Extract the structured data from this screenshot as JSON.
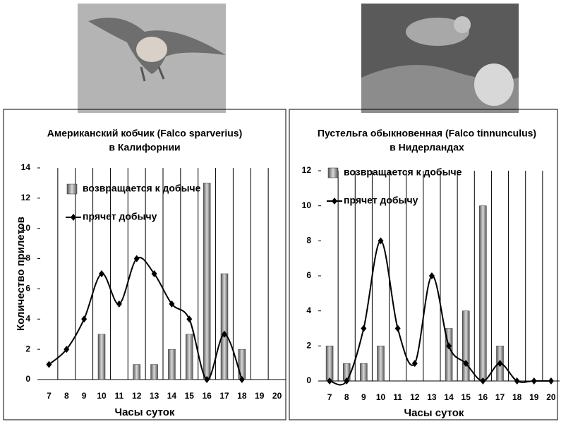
{
  "chart_data": [
    {
      "type": "bar+line",
      "title": [
        "Американский кобчик (Falco sparverius)",
        "в Калифорнии"
      ],
      "y_label": "Количество прилетов",
      "x_label": "Часы суток",
      "categories": [
        "7",
        "8",
        "9",
        "10",
        "11",
        "12",
        "13",
        "14",
        "15",
        "16",
        "17",
        "18",
        "19",
        "20"
      ],
      "series": [
        {
          "name": "возвращается к добыче",
          "type": "bar",
          "color": "#8a8a8a",
          "values": [
            null,
            null,
            null,
            3,
            null,
            1,
            1,
            2,
            3,
            13,
            7,
            2,
            null,
            null
          ]
        },
        {
          "name": "прячет добычу",
          "type": "line",
          "color": "#000000",
          "values": [
            1,
            2,
            4,
            7,
            5,
            8,
            7,
            5,
            4,
            0,
            3,
            0,
            null,
            null
          ]
        }
      ],
      "ylim": [
        0,
        14
      ],
      "yticks": [
        0,
        2,
        4,
        6,
        8,
        10,
        12,
        14
      ],
      "grid": true
    },
    {
      "type": "bar+line",
      "title": [
        "Пустельга обыкновенная (Falco tinnunculus)",
        "в Нидерландах"
      ],
      "x_label": "Часы суток",
      "categories": [
        "7",
        "8",
        "9",
        "10",
        "11",
        "12",
        "13",
        "14",
        "15",
        "16",
        "17",
        "18",
        "19",
        "20"
      ],
      "series": [
        {
          "name": "возвращается к добыче",
          "type": "bar",
          "color": "#8a8a8a",
          "values": [
            2,
            1,
            1,
            2,
            null,
            null,
            null,
            3,
            4,
            10,
            2,
            null,
            null,
            null
          ]
        },
        {
          "name": "прячет добычу",
          "type": "line",
          "color": "#000000",
          "values": [
            0,
            0,
            3,
            8,
            3,
            1,
            6,
            2,
            1,
            0,
            1,
            0,
            0,
            0
          ]
        }
      ],
      "ylim": [
        0,
        12
      ],
      "yticks": [
        0,
        2,
        4,
        6,
        8,
        10,
        12
      ],
      "grid": true
    }
  ]
}
